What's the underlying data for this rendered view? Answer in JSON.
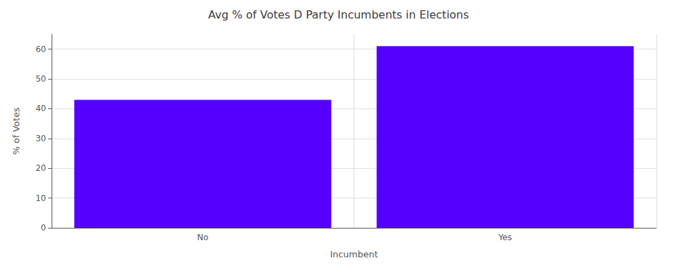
{
  "chart_data": {
    "type": "bar",
    "title": "Avg % of Votes D Party Incumbents in Elections",
    "xlabel": "Incumbent",
    "ylabel": "% of Votes",
    "categories": [
      "No",
      "Yes"
    ],
    "values": [
      43.0,
      61.0
    ],
    "color": "#5500ff",
    "ylim": [
      0,
      65
    ],
    "yticks": [
      0,
      10,
      20,
      30,
      40,
      50,
      60
    ],
    "grid": true
  }
}
